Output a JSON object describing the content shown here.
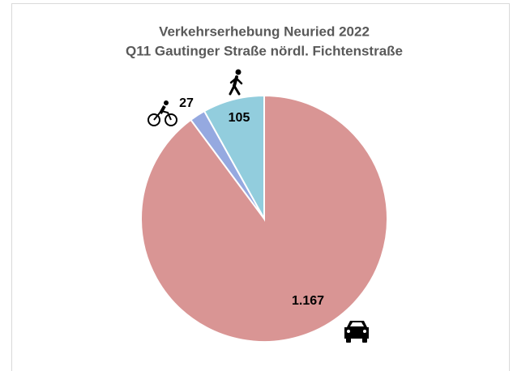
{
  "chart_data": {
    "type": "pie",
    "title": "Verkehrserhebung Neuried 2022",
    "subtitle": "Q11 Gautinger Straße nördl. Fichtenstraße",
    "categories": [
      null,
      null,
      null
    ],
    "values": [
      1167,
      27,
      105
    ],
    "value_labels": [
      "1.167",
      "27",
      "105"
    ],
    "colors": [
      "#d99594",
      "#95a9e0",
      "#92cddd"
    ]
  }
}
